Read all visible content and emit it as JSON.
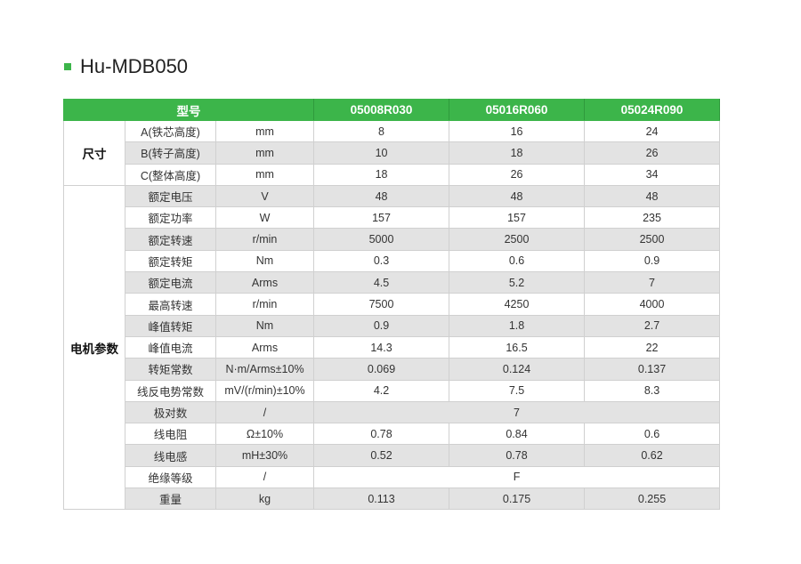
{
  "title": "Hu-MDB050",
  "accent": "#3cb54a",
  "header": {
    "label": "型号",
    "models": [
      "05008R030",
      "05016R060",
      "05024R090"
    ]
  },
  "groups": [
    {
      "name": "尺寸",
      "rows": [
        {
          "param": "A(铁芯高度)",
          "unit": "mm",
          "values": [
            "8",
            "16",
            "24"
          ]
        },
        {
          "param": "B(转子高度)",
          "unit": "mm",
          "values": [
            "10",
            "18",
            "26"
          ]
        },
        {
          "param": "C(整体高度)",
          "unit": "mm",
          "values": [
            "18",
            "26",
            "34"
          ]
        }
      ]
    },
    {
      "name": "电机参数",
      "rows": [
        {
          "param": "额定电压",
          "unit": "V",
          "values": [
            "48",
            "48",
            "48"
          ]
        },
        {
          "param": "额定功率",
          "unit": "W",
          "values": [
            "157",
            "157",
            "235"
          ]
        },
        {
          "param": "额定转速",
          "unit": "r/min",
          "values": [
            "5000",
            "2500",
            "2500"
          ]
        },
        {
          "param": "额定转矩",
          "unit": "Nm",
          "values": [
            "0.3",
            "0.6",
            "0.9"
          ]
        },
        {
          "param": "额定电流",
          "unit": "Arms",
          "values": [
            "4.5",
            "5.2",
            "7"
          ]
        },
        {
          "param": "最高转速",
          "unit": "r/min",
          "values": [
            "7500",
            "4250",
            "4000"
          ]
        },
        {
          "param": "峰值转矩",
          "unit": "Nm",
          "values": [
            "0.9",
            "1.8",
            "2.7"
          ]
        },
        {
          "param": "峰值电流",
          "unit": "Arms",
          "values": [
            "14.3",
            "16.5",
            "22"
          ]
        },
        {
          "param": "转矩常数",
          "unit": "N·m/Arms±10%",
          "values": [
            "0.069",
            "0.124",
            "0.137"
          ]
        },
        {
          "param": "线反电势常数",
          "unit": "mV/(r/min)±10%",
          "values": [
            "4.2",
            "7.5",
            "8.3"
          ]
        },
        {
          "param": "极对数",
          "unit": "/",
          "merged": "7"
        },
        {
          "param": "线电阻",
          "unit": "Ω±10%",
          "values": [
            "0.78",
            "0.84",
            "0.6"
          ]
        },
        {
          "param": "线电感",
          "unit": "mH±30%",
          "values": [
            "0.52",
            "0.78",
            "0.62"
          ]
        },
        {
          "param": "绝缘等级",
          "unit": "/",
          "merged": "F"
        },
        {
          "param": "重量",
          "unit": "kg",
          "values": [
            "0.113",
            "0.175",
            "0.255"
          ]
        }
      ]
    }
  ]
}
